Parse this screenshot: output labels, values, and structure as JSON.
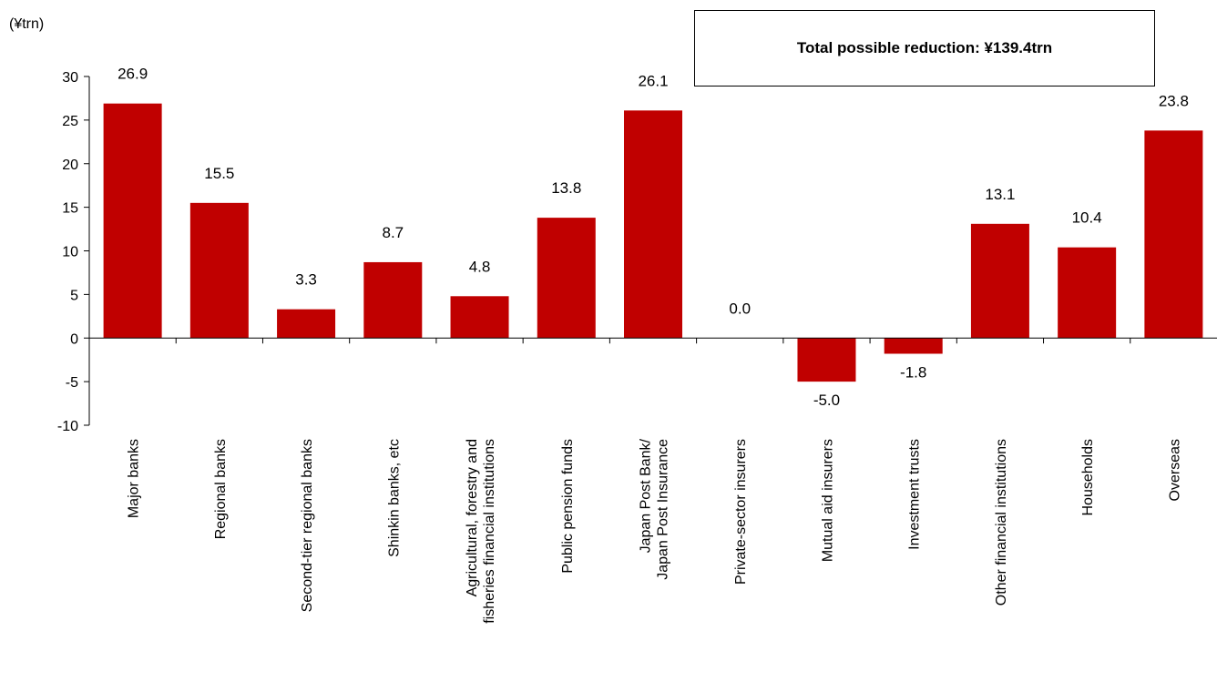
{
  "chart_data": {
    "type": "bar",
    "ylabel": "(¥trn)",
    "annotation": "Total possible reduction: ¥139.4trn",
    "ylim": [
      -10,
      30
    ],
    "yticks": [
      30,
      25,
      20,
      15,
      10,
      5,
      0,
      -5,
      -10
    ],
    "bar_color": "#c00000",
    "grid": false,
    "categories": [
      "Major banks",
      "Regional banks",
      "Second-tier regional banks",
      "Shinkin banks, etc",
      [
        "Agricultural, forestry and",
        "fisheries financial institutions"
      ],
      "Public pension funds",
      [
        "Japan Post Bank/",
        "Japan Post Insurance"
      ],
      "Private-sector insurers",
      "Mutual aid insurers",
      "Investment trusts",
      "Other financial institutions",
      "Households",
      "Overseas"
    ],
    "values": [
      26.9,
      15.5,
      3.3,
      8.7,
      4.8,
      13.8,
      26.1,
      0.0,
      -5.0,
      -1.8,
      13.1,
      10.4,
      23.8
    ],
    "data_labels": [
      "26.9",
      "15.5",
      "3.3",
      "8.7",
      "4.8",
      "13.8",
      "26.1",
      "0.0",
      "-5.0",
      "-1.8",
      "13.1",
      "10.4",
      "23.8"
    ]
  }
}
